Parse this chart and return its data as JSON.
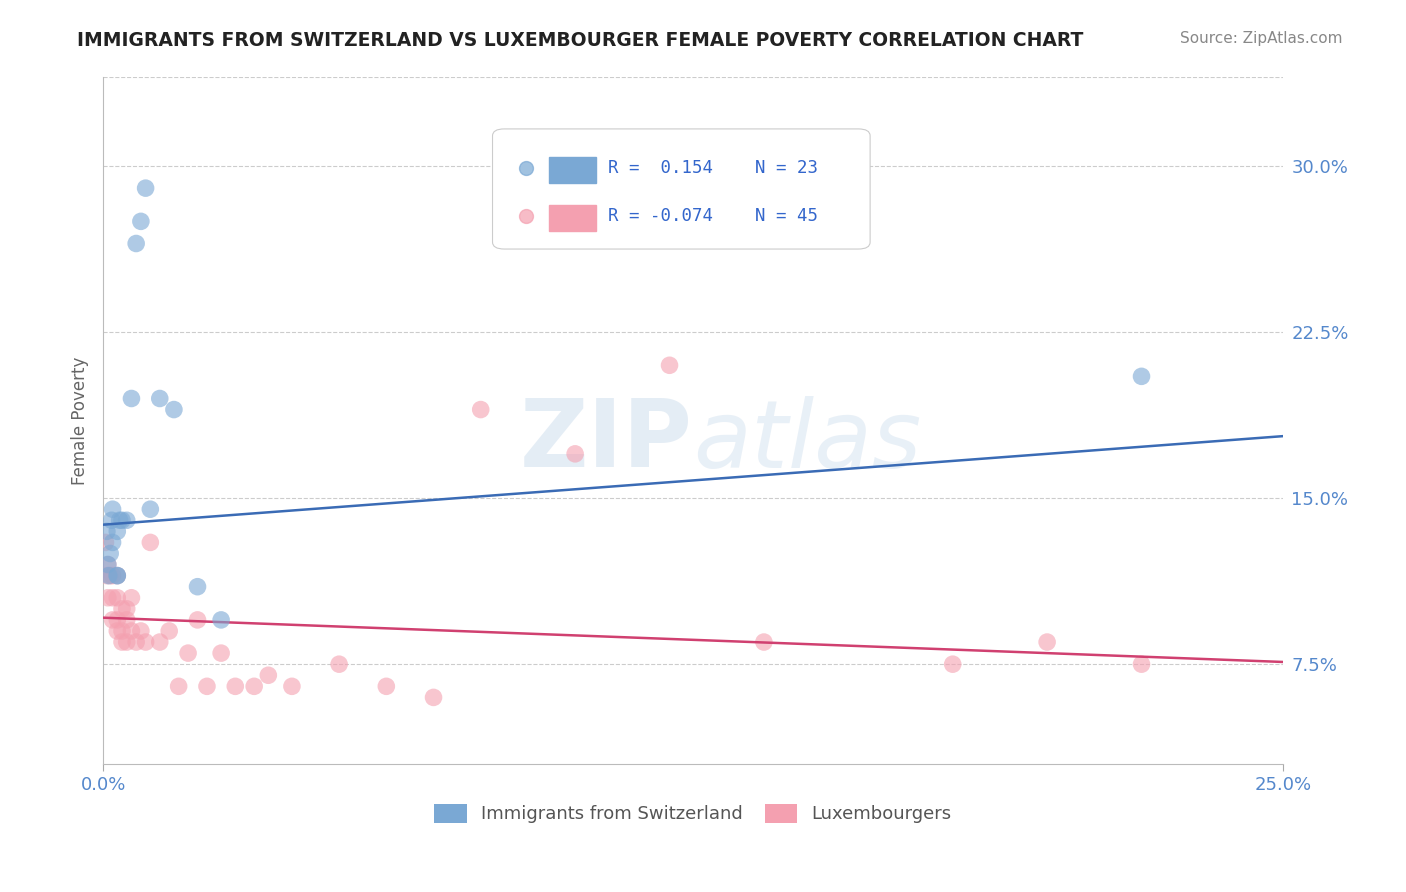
{
  "title": "IMMIGRANTS FROM SWITZERLAND VS LUXEMBOURGER FEMALE POVERTY CORRELATION CHART",
  "source": "Source: ZipAtlas.com",
  "ylabel": "Female Poverty",
  "xlim": [
    0.0,
    0.25
  ],
  "ylim": [
    0.03,
    0.34
  ],
  "ytick_labels": [
    "7.5%",
    "15.0%",
    "22.5%",
    "30.0%"
  ],
  "ytick_vals": [
    0.075,
    0.15,
    0.225,
    0.3
  ],
  "background_color": "#ffffff",
  "blue_color": "#7aa8d4",
  "pink_color": "#f4a0b0",
  "blue_line_color": "#3a6bb5",
  "pink_line_color": "#d04070",
  "series": [
    {
      "name": "Immigrants from Switzerland",
      "R": 0.154,
      "N": 23,
      "points_x": [
        0.0008,
        0.001,
        0.0012,
        0.0015,
        0.0018,
        0.002,
        0.002,
        0.003,
        0.003,
        0.003,
        0.0035,
        0.004,
        0.005,
        0.006,
        0.007,
        0.008,
        0.009,
        0.01,
        0.012,
        0.015,
        0.02,
        0.025,
        0.22
      ],
      "points_y": [
        0.135,
        0.12,
        0.115,
        0.125,
        0.14,
        0.145,
        0.13,
        0.135,
        0.115,
        0.115,
        0.14,
        0.14,
        0.14,
        0.195,
        0.265,
        0.275,
        0.29,
        0.145,
        0.195,
        0.19,
        0.11,
        0.095,
        0.205
      ],
      "trend_x": [
        0.0,
        0.25
      ],
      "trend_y": [
        0.138,
        0.178
      ]
    },
    {
      "name": "Luxembourgers",
      "R": -0.074,
      "N": 45,
      "points_x": [
        0.0005,
        0.0008,
        0.001,
        0.001,
        0.0015,
        0.002,
        0.002,
        0.002,
        0.003,
        0.003,
        0.003,
        0.003,
        0.004,
        0.004,
        0.004,
        0.005,
        0.005,
        0.005,
        0.006,
        0.006,
        0.007,
        0.008,
        0.009,
        0.01,
        0.012,
        0.014,
        0.016,
        0.018,
        0.02,
        0.022,
        0.025,
        0.028,
        0.032,
        0.035,
        0.04,
        0.05,
        0.06,
        0.07,
        0.08,
        0.1,
        0.12,
        0.14,
        0.18,
        0.2,
        0.22
      ],
      "points_y": [
        0.13,
        0.115,
        0.12,
        0.105,
        0.115,
        0.115,
        0.105,
        0.095,
        0.115,
        0.105,
        0.095,
        0.09,
        0.1,
        0.09,
        0.085,
        0.1,
        0.095,
        0.085,
        0.105,
        0.09,
        0.085,
        0.09,
        0.085,
        0.13,
        0.085,
        0.09,
        0.065,
        0.08,
        0.095,
        0.065,
        0.08,
        0.065,
        0.065,
        0.07,
        0.065,
        0.075,
        0.065,
        0.06,
        0.19,
        0.17,
        0.21,
        0.085,
        0.075,
        0.085,
        0.075
      ],
      "trend_x": [
        0.0,
        0.25
      ],
      "trend_y": [
        0.096,
        0.076
      ]
    }
  ]
}
